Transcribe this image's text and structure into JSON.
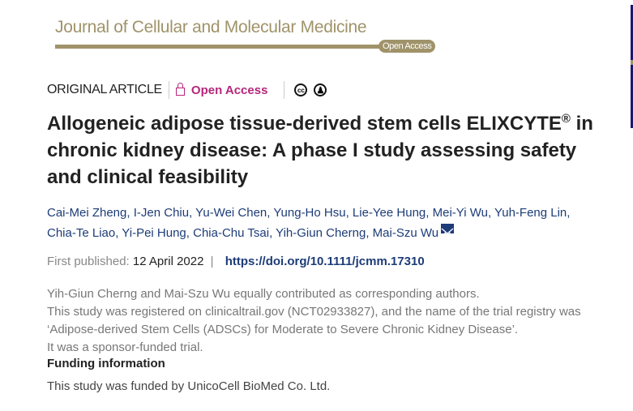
{
  "journal": {
    "name": "Journal of Cellular and Molecular Medicine",
    "badge": "Open Access"
  },
  "meta": {
    "type": "ORIGINAL ARTICLE",
    "access": "Open Access",
    "icons": [
      "lock-open-icon",
      "cc-icon",
      "by-icon"
    ],
    "cc_label": "cc"
  },
  "title": {
    "text": "Allogeneic adipose tissue-derived stem cells ELIXCYTE",
    "reg": "®",
    "rest": " in chronic kidney disease: A phase I study assessing safety and clinical feasibility"
  },
  "authors": [
    "Cai-Mei Zheng",
    "I-Jen Chiu",
    "Yu-Wei Chen",
    "Yung-Ho Hsu",
    "Lie-Yee Hung",
    "Mei-Yi Wu",
    "Yuh-Feng Lin",
    "Chia-Te Liao",
    "Yi-Pei Hung",
    "Chia-Chu Tsai",
    "Yih-Giun Cherng",
    "Mai-Szu Wu"
  ],
  "published": {
    "label": "First published:",
    "date": "12 April 2022",
    "sep": "|",
    "doi": "https://doi.org/10.1111/jcmm.17310"
  },
  "notes": [
    "Yih-Giun Cherng and Mai-Szu Wu equally contributed as corresponding authors.",
    "This study was registered on clinicaltrail.gov (NCT02933827), and the name of the trial registry was ‘Adipose-derived Stem Cells (ADSCs) for Moderate to Severe Chronic Kidney Disease’.",
    "It was a sponsor-funded trial."
  ],
  "funding": {
    "heading": "Funding information",
    "text": "This study was funded by UnicoCell BioMed Co. Ltd."
  },
  "colors": {
    "journal_gold": "#a0936a",
    "open_access": "#b5267a",
    "link": "#1d3c78"
  }
}
